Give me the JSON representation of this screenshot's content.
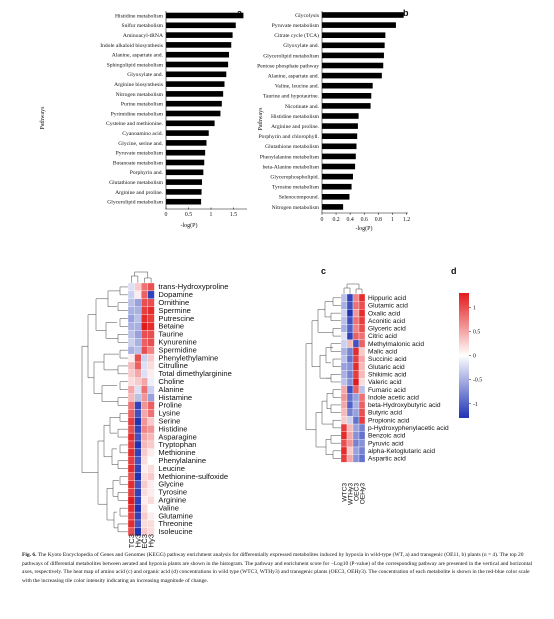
{
  "chart_data": [
    {
      "type": "bar",
      "orientation": "horizontal",
      "panel_label": "a",
      "ylabel": "Pathways",
      "xlabel": "-log(P)",
      "xticks": [
        "0",
        "0.5",
        "1",
        "1.5"
      ],
      "xlim": [
        0,
        1.8
      ],
      "categories": [
        "Histidine metabolism",
        "Sulfur metabolism",
        "Aminoacyl-tRNA",
        "Indole alkaloid biosynthesis",
        "Alanine, aspartate and.",
        "Sphingolipid metabolism",
        "Glyoxylate and.",
        "Arginine biosynthesis",
        "Nitrogen metabolism",
        "Purine metabolism",
        "Pyrimidine metabolism",
        "Cysteine and methionine.",
        "Cyanoamino acid.",
        "Glycine, serine and.",
        "Pyruvate metabolism",
        "Butanoate metabolism",
        "Porphyrin and.",
        "Glutathione metabolism",
        "Arginine and proline.",
        "Glycerolipid metabolism"
      ],
      "values": [
        1.72,
        1.55,
        1.48,
        1.45,
        1.4,
        1.38,
        1.34,
        1.3,
        1.27,
        1.24,
        1.21,
        1.08,
        0.95,
        0.9,
        0.87,
        0.85,
        0.83,
        0.8,
        0.79,
        0.78
      ]
    },
    {
      "type": "bar",
      "orientation": "horizontal",
      "panel_label": "b",
      "ylabel": "Pathways",
      "xlabel": "-log(P)",
      "xticks": [
        "0",
        "0.2",
        "0.4",
        "0.6",
        "0.8",
        "1",
        "1.2"
      ],
      "xlim": [
        0,
        1.25
      ],
      "categories": [
        "Glycolysis",
        "Pyruvate metabolism",
        "Citrate cycle (TCA)",
        "Glyoxylate and.",
        "Glycerolipid metabolism",
        "Pentose phosphate pathway",
        "Alanine, aspartate and.",
        "Valine, leucine and.",
        "Taurine and hypotaurine.",
        "Nicotinate and.",
        "Histidine metabolism",
        "Arginine and proline.",
        "Porphyrin and chlorophyll.",
        "Glutathione metabolism",
        "Phenylalanine metabolism",
        "beta-Alanine metabolism",
        "Glycerophospholipid.",
        "Tyrosine metabolism",
        "Selenocompound.",
        "Nitrogen metabolism"
      ],
      "values": [
        1.16,
        1.05,
        0.9,
        0.89,
        0.88,
        0.87,
        0.85,
        0.72,
        0.7,
        0.69,
        0.52,
        0.51,
        0.5,
        0.49,
        0.48,
        0.47,
        0.44,
        0.42,
        0.39,
        0.3
      ]
    },
    {
      "type": "heatmap",
      "panel_label": "c",
      "columns": [
        "WTC3",
        "WTHy3",
        "OEC3",
        "OEHy3"
      ],
      "rows": [
        "trans-Hydroxyproline",
        "Dopamine",
        "Ornithine",
        "Spermine",
        "Putrescine",
        "Betaine",
        "Taurine",
        "Kynurenine",
        "Spermidine",
        "Phenylethylamine",
        "Citrulline",
        "Total dimethylarginine",
        "Choline",
        "Alanine",
        "Histamine",
        "Proline",
        "Lysine",
        "Serine",
        "Histidine",
        "Asparagine",
        "Tryptophan",
        "Methionine",
        "Phenylalanine",
        "Leucine",
        "Methionine-sulfoxide",
        "Glycine",
        "Tyrosine",
        "Arginine",
        "Valine",
        "Glutamine",
        "Threonine",
        "Isoleucine"
      ],
      "values": [
        [
          -0.2,
          0.3,
          0.8,
          1.0
        ],
        [
          -0.3,
          0.1,
          0.9,
          -1.2
        ],
        [
          -0.4,
          -0.6,
          1.0,
          1.0
        ],
        [
          -0.5,
          -0.5,
          1.1,
          1.2
        ],
        [
          -0.6,
          -0.4,
          1.2,
          1.1
        ],
        [
          -0.5,
          -0.5,
          1.3,
          1.2
        ],
        [
          -0.4,
          -0.6,
          1.0,
          1.0
        ],
        [
          -0.3,
          -0.5,
          0.9,
          1.0
        ],
        [
          -0.5,
          -0.4,
          1.0,
          0.7
        ],
        [
          0.1,
          1.0,
          -0.3,
          0.3
        ],
        [
          0.4,
          0.9,
          -0.2,
          0.2
        ],
        [
          0.3,
          0.5,
          -0.2,
          0.1
        ],
        [
          0.2,
          0.3,
          0.5,
          -0.1
        ],
        [
          0.5,
          -0.2,
          0.8,
          -0.3
        ],
        [
          0.4,
          -0.4,
          0.6,
          -0.6
        ],
        [
          0.8,
          -1.2,
          0.6,
          0.9
        ],
        [
          0.9,
          -1.1,
          0.5,
          0.8
        ],
        [
          1.1,
          -1.3,
          0.6,
          0.3
        ],
        [
          1.0,
          -1.2,
          0.7,
          0.6
        ],
        [
          1.2,
          -1.1,
          0.5,
          0.4
        ],
        [
          1.1,
          -1.3,
          0.4,
          0.3
        ],
        [
          1.2,
          -1.2,
          0.3,
          0.1
        ],
        [
          1.1,
          -1.1,
          0.2,
          0.0
        ],
        [
          1.2,
          -1.2,
          0.1,
          0.2
        ],
        [
          1.0,
          -1.3,
          0.2,
          0.3
        ],
        [
          1.2,
          -1.1,
          0.3,
          0.1
        ],
        [
          1.1,
          -1.2,
          0.2,
          0.1
        ],
        [
          1.3,
          -1.2,
          0.1,
          0.2
        ],
        [
          1.2,
          -1.3,
          0.2,
          0.0
        ],
        [
          1.1,
          -1.2,
          0.3,
          0.1
        ],
        [
          1.2,
          -1.1,
          0.2,
          0.2
        ],
        [
          1.0,
          -1.3,
          0.3,
          0.2
        ]
      ]
    },
    {
      "type": "heatmap",
      "panel_label": "d",
      "columns": [
        "WTC3",
        "WTHy3",
        "OEC3",
        "OEHy3"
      ],
      "rows": [
        "Hippuric acid",
        "Glutamic acid",
        "Oxalic acid",
        "Aconitic acid",
        "Glyceric acid",
        "Citric acid",
        "Methylmalonic acid",
        "Malic acid",
        "Succinic acid",
        "Glutaric acid",
        "Shikimic acid",
        "Valeric acid",
        "Fumaric acid",
        "Indole acetic acid",
        "beta-Hydroxybutyric acid",
        "Butyric acid",
        "Propionic acid",
        "p-Hydroxyphenylacetic acid",
        "Benzoic acid",
        "Pyruvic acid",
        "alpha-Ketoglutaric acid",
        "Aspartic acid"
      ],
      "values": [
        [
          -0.4,
          -1.2,
          0.7,
          1.2
        ],
        [
          -0.5,
          -1.1,
          0.8,
          1.0
        ],
        [
          -0.3,
          -1.3,
          0.6,
          1.2
        ],
        [
          -0.4,
          -1.1,
          0.8,
          1.1
        ],
        [
          -0.5,
          -1.0,
          0.7,
          1.0
        ],
        [
          -0.2,
          -1.2,
          0.9,
          0.8
        ],
        [
          -0.3,
          0.4,
          -1.1,
          0.9
        ],
        [
          -0.5,
          -0.8,
          1.2,
          0.3
        ],
        [
          -0.4,
          -0.9,
          1.1,
          0.5
        ],
        [
          -0.6,
          -0.7,
          1.2,
          0.4
        ],
        [
          -0.5,
          -0.8,
          1.1,
          0.4
        ],
        [
          -0.4,
          -0.7,
          1.3,
          0.2
        ],
        [
          0.5,
          -1.1,
          0.9,
          -0.4
        ],
        [
          0.6,
          -0.9,
          -0.6,
          0.8
        ],
        [
          0.5,
          -1.0,
          -0.5,
          0.9
        ],
        [
          0.4,
          -0.8,
          -0.6,
          1.0
        ],
        [
          0.3,
          -0.3,
          -0.9,
          1.1
        ],
        [
          1.1,
          0.4,
          -0.6,
          -0.8
        ],
        [
          1.2,
          0.5,
          -0.7,
          -0.9
        ],
        [
          1.0,
          0.6,
          -0.8,
          -0.7
        ],
        [
          1.2,
          0.3,
          -0.6,
          -0.8
        ],
        [
          1.1,
          0.5,
          -0.7,
          -0.9
        ]
      ],
      "colorbar": {
        "ticks": [
          "1",
          "0.5",
          "0",
          "-0.5",
          "-1"
        ],
        "range": [
          -1.3,
          1.3
        ]
      }
    }
  ],
  "caption": {
    "lead": "Fig. 6.",
    "text": "The Kyoto Encyclopedia of Genes and Genomes (KEGG) pathway enrichment analysis for differentially expressed metabolites induced by hypoxia in wild-type (WT, a) and transgenic (OE11, b) plants (n = 4). The top 20 pathways of differential metabolites between aerated and hypoxia plants are shown in the histogram. The pathway and enrichment score for −Log10 (P-value) of the corresponding pathway are presented in the vertical and horizontal axes, respectively. The heat map of amino acid (c) and organic acid (d) concentrations in wild type (WTC3, WTHy3) and transgenic plants (OEC3, OEHy3). The concentration of each metabolite is shown in the red-blue color scale with the increasing tile color intensity indicating an increasing magnitude of change."
  }
}
